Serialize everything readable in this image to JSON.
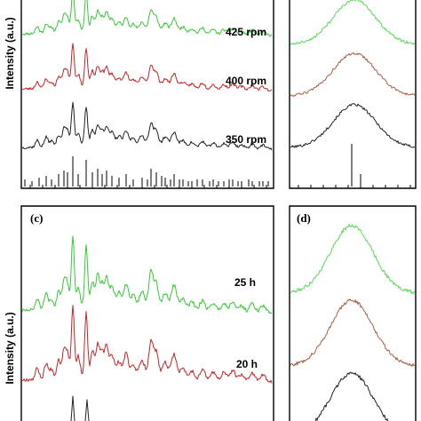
{
  "colors": {
    "green": "#33cc33",
    "light_green": "#55dd55",
    "red": "#cc2222",
    "brown": "#a5604a",
    "black": "#222222"
  },
  "chart_data": [
    {
      "panel": "",
      "type": "line",
      "ylabel": "Intensity (a.u.)",
      "xlabel": "",
      "series": [
        {
          "name": "425 rpm",
          "color": "#33cc33"
        },
        {
          "name": "400 rpm",
          "color": "#cc2222"
        },
        {
          "name": "350 rpm",
          "color": "#222222"
        }
      ],
      "reference_pattern": true
    },
    {
      "panel": "",
      "type": "line",
      "ylabel": "",
      "xlabel": "",
      "series": [
        {
          "color": "#55dd55"
        },
        {
          "color": "#a5604a"
        },
        {
          "color": "#222222"
        }
      ],
      "reference_pattern": true
    },
    {
      "panel": "(c)",
      "type": "line",
      "ylabel": "Intensity (a.u.)",
      "xlabel": "",
      "series": [
        {
          "name": "25 h",
          "color": "#33cc33"
        },
        {
          "name": "20 h",
          "color": "#cc2222"
        },
        {
          "color": "#222222"
        }
      ]
    },
    {
      "panel": "(d)",
      "type": "line",
      "ylabel": "",
      "xlabel": "",
      "series": [
        {
          "color": "#55dd55"
        },
        {
          "color": "#a5604a"
        },
        {
          "color": "#222222"
        }
      ]
    }
  ]
}
